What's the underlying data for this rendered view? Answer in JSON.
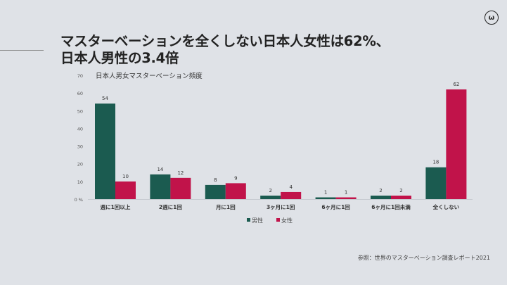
{
  "title_line1": "マスターベーションを全くしない日本人女性は62%、",
  "title_line2": "日本人男性の3.4倍",
  "logo_text": "(ω)",
  "source": "参照：世界のマスターベーション調査レポート2021",
  "chart_data": {
    "type": "bar",
    "title": "日本人男女マスターベーション頻度",
    "categories": [
      "週に1回以上",
      "2週に1回",
      "月に1回",
      "3ヶ月に1回",
      "6ヶ月に1回",
      "6ヶ月に1回未満",
      "全くしない"
    ],
    "series": [
      {
        "name": "男性",
        "color": "#1b5b50",
        "values": [
          54,
          14,
          8,
          2,
          1,
          2,
          18
        ]
      },
      {
        "name": "女性",
        "color": "#c1134a",
        "values": [
          10,
          12,
          9,
          4,
          1,
          2,
          62
        ]
      }
    ],
    "yticks": [
      "0 %",
      "10",
      "20",
      "30",
      "40",
      "50",
      "60",
      "70"
    ],
    "ylim": [
      0,
      70
    ],
    "ylabel": "",
    "xlabel": "",
    "legend": "bottom",
    "grid": false
  }
}
